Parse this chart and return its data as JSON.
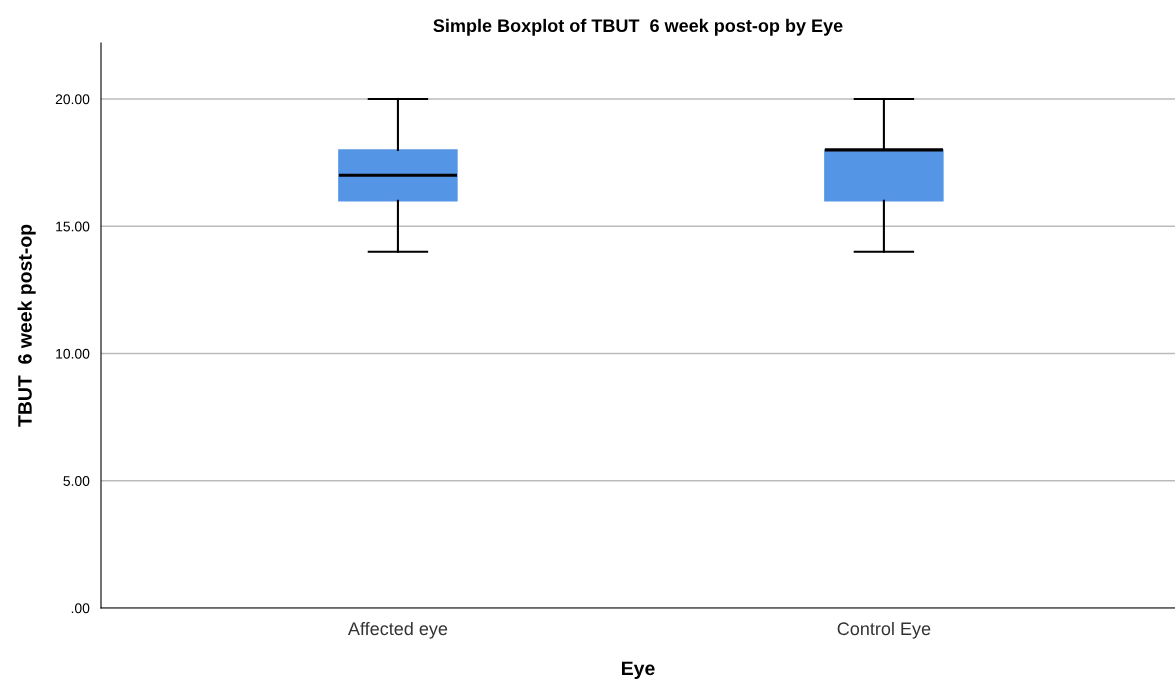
{
  "chart_data": {
    "type": "box",
    "title": "Simple Boxplot of TBUT  6 week post-op by Eye",
    "xlabel": "Eye",
    "ylabel": "TBUT  6 week post-op",
    "categories": [
      "Affected eye",
      "Control Eye"
    ],
    "boxes": [
      {
        "low": 14,
        "q1": 16,
        "median": 17,
        "q3": 18,
        "high": 20
      },
      {
        "low": 14,
        "q1": 16,
        "median": 18,
        "q3": 18,
        "high": 20
      }
    ],
    "color": "#5595e5",
    "ylim": [
      0,
      22.2
    ],
    "yticks": [
      {
        "value": 0,
        "label": ".00"
      },
      {
        "value": 5,
        "label": "5.00"
      },
      {
        "value": 10,
        "label": "10.00"
      },
      {
        "value": 15,
        "label": "15.00"
      },
      {
        "value": 20,
        "label": "20.00"
      }
    ],
    "grid": "y",
    "legend": false
  }
}
